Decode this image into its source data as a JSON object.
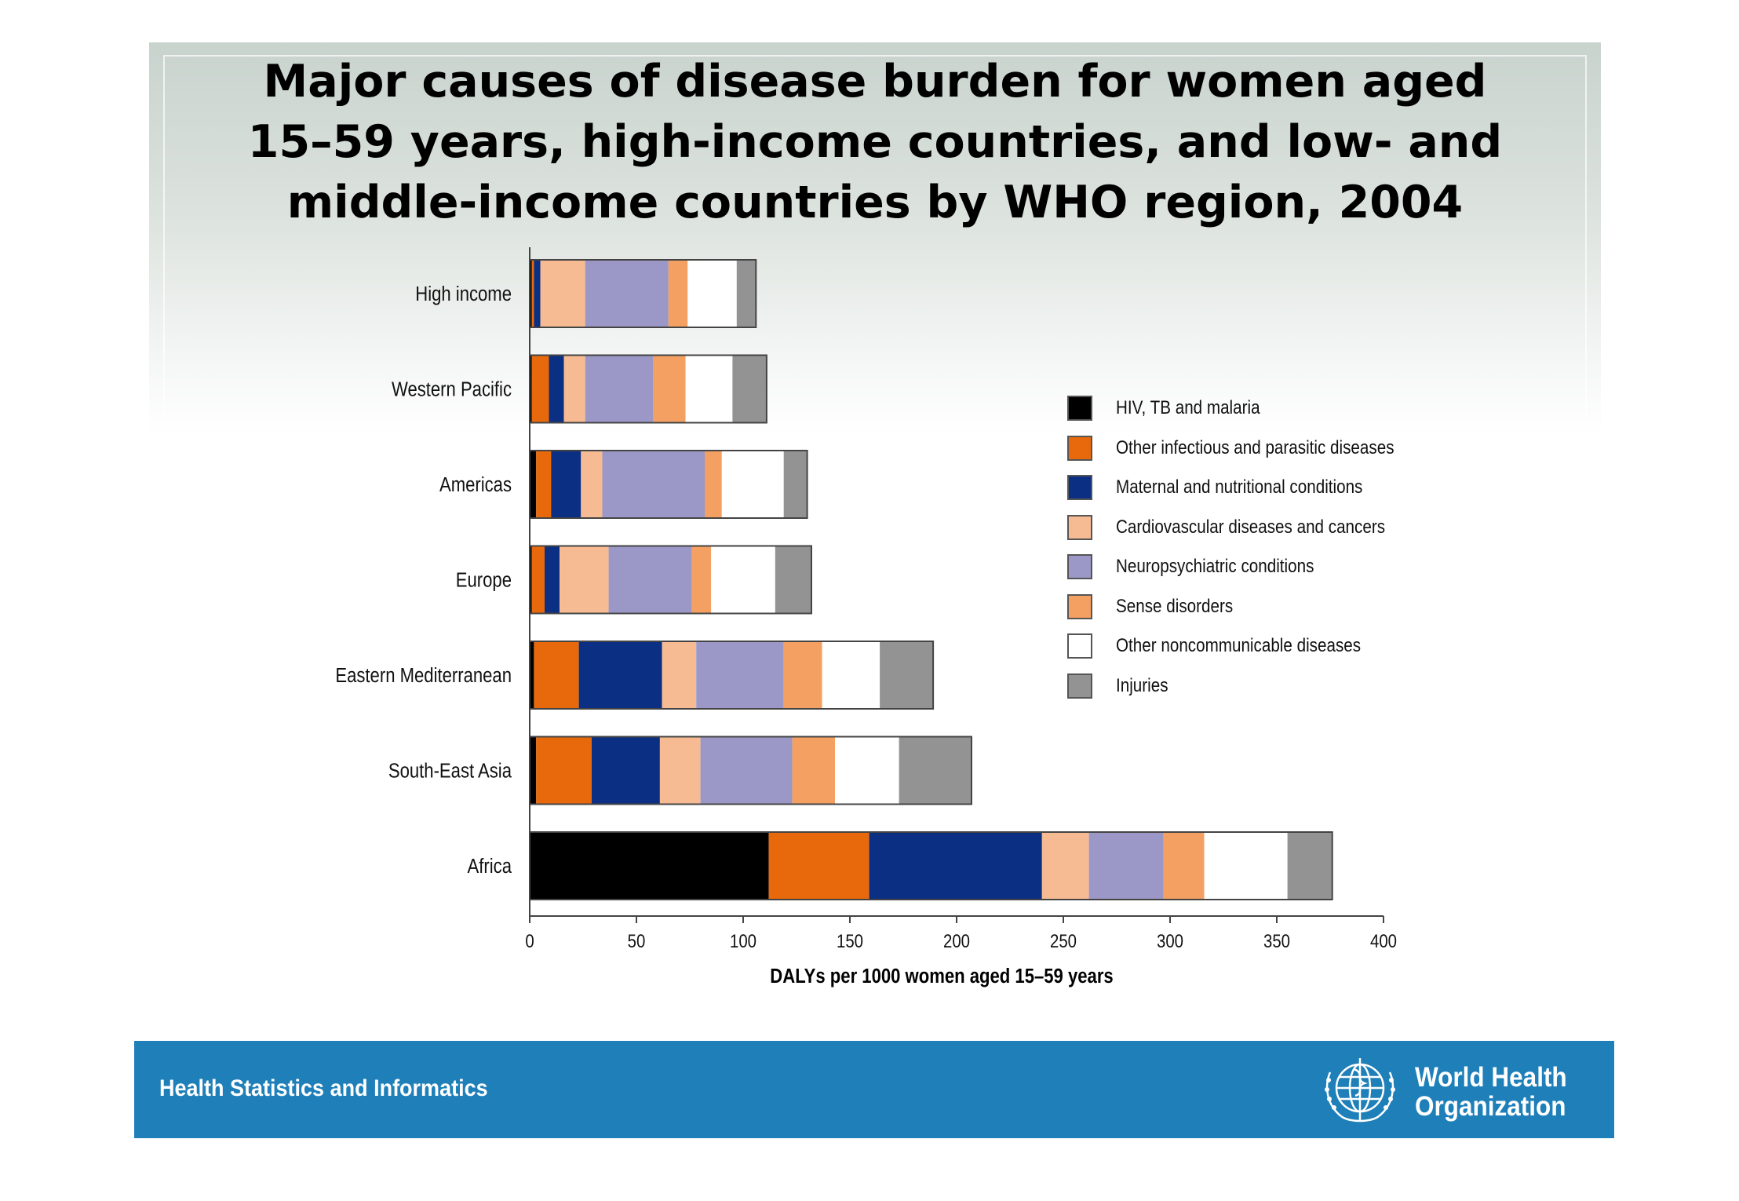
{
  "title_lines": [
    "Major causes of disease burden for women aged",
    "15–59 years, high-income countries, and low- and",
    "middle-income countries by WHO region, 2004"
  ],
  "footer": {
    "left_text": "Health Statistics and Informatics",
    "org_name_line1": "World Health",
    "org_name_line2": "Organization",
    "colors": {
      "band": "#1e7fb9",
      "text": "#ffffff"
    }
  },
  "chart_data": {
    "type": "bar",
    "orientation": "horizontal",
    "stacked": true,
    "title": "Major causes of disease burden for women aged 15–59 years, high-income countries, and low- and middle-income countries by WHO region, 2004",
    "xlabel": "DALYs per 1000 women aged 15–59 years",
    "ylabel": "",
    "xlim": [
      0,
      400
    ],
    "xticks": [
      0,
      50,
      100,
      150,
      200,
      250,
      300,
      350,
      400
    ],
    "grid": false,
    "legend_position": "right",
    "categories": [
      "High income",
      "Western Pacific",
      "Americas",
      "Europe",
      "Eastern Mediterranean",
      "South-East Asia",
      "Africa"
    ],
    "series": [
      {
        "name": "HIV, TB and malaria",
        "color": "#000000",
        "values": [
          1,
          1,
          3,
          1,
          2,
          3,
          112
        ]
      },
      {
        "name": "Other infectious and parasitic diseases",
        "color": "#e8690c",
        "values": [
          1,
          8,
          7,
          6,
          21,
          26,
          47
        ]
      },
      {
        "name": "Maternal and nutritional conditions",
        "color": "#0b2f82",
        "values": [
          3,
          7,
          14,
          7,
          39,
          32,
          81
        ]
      },
      {
        "name": "Cardiovascular diseases and cancers",
        "color": "#f7bb93",
        "values": [
          21,
          10,
          10,
          23,
          16,
          19,
          22
        ]
      },
      {
        "name": "Neuropsychiatric conditions",
        "color": "#9b97c6",
        "values": [
          39,
          32,
          48,
          39,
          41,
          43,
          35
        ]
      },
      {
        "name": "Sense disorders",
        "color": "#f4a062",
        "values": [
          9,
          15,
          8,
          9,
          18,
          20,
          19
        ]
      },
      {
        "name": "Other noncommunicable diseases",
        "color": "#ffffff",
        "values": [
          23,
          22,
          29,
          30,
          27,
          30,
          39
        ]
      },
      {
        "name": "Injuries",
        "color": "#939393",
        "values": [
          9,
          16,
          11,
          17,
          25,
          34,
          21
        ]
      }
    ]
  }
}
